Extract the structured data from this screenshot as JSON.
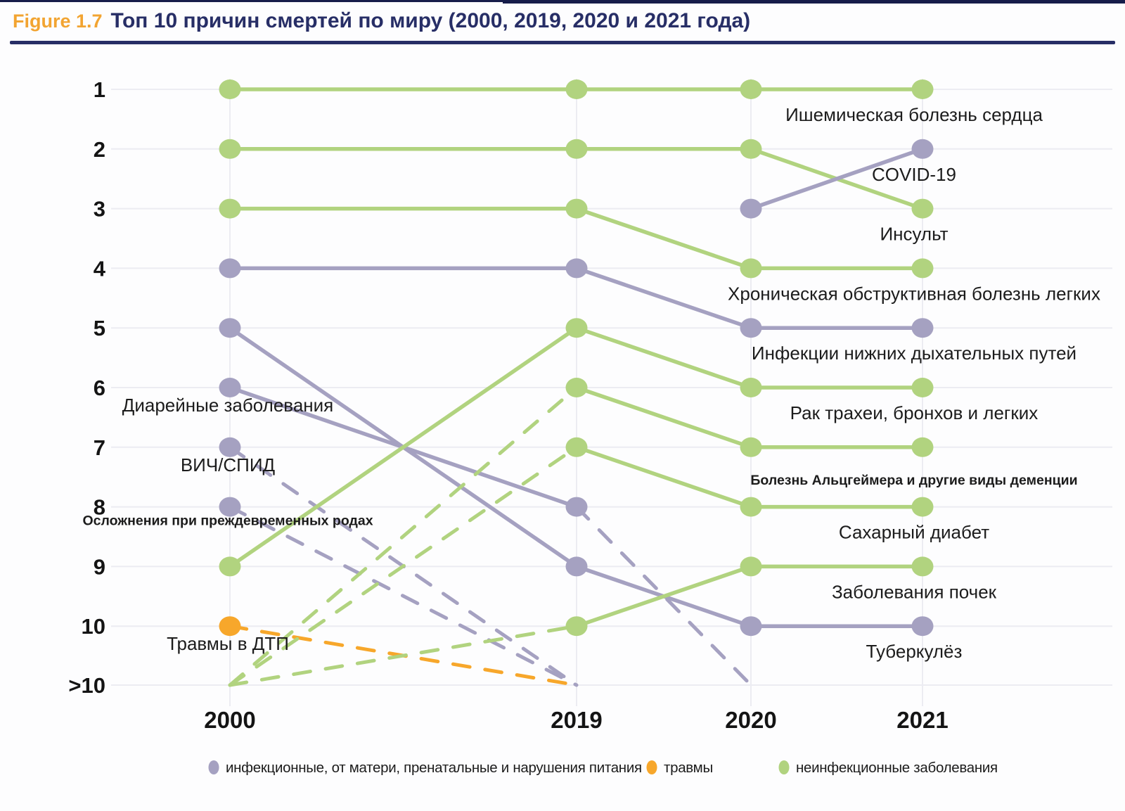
{
  "header": {
    "tag": "Figure 1.7",
    "title": "Топ 10 причин смертей по миру (2000, 2019, 2020 и 2021 года)",
    "tag_color": "#f2a431",
    "title_color": "#272e66",
    "rule_color": "#272e66",
    "top_bar_color": "#161c4a"
  },
  "chart_data": {
    "type": "line",
    "variant": "bump-chart-of-ranks",
    "title": "Топ 10 причин смертей по миру (2000, 2019, 2020 и 2021 года)",
    "x": [
      "2000",
      "2019",
      "2020",
      "2021"
    ],
    "y_ticks": [
      "1",
      "2",
      "3",
      "4",
      "5",
      "6",
      "7",
      "8",
      "9",
      "10",
      ">10"
    ],
    "y_meaning": "rank among causes of death, 1 = leading; >10 = outside top 10",
    "grid": true,
    "legend_position": "bottom",
    "colors": {
      "infectious": "#a5a1c1",
      "injuries": "#f7a72b",
      "noncommunicable": "#b1d37f",
      "grid": "#ececf2",
      "axis_text": "#141414",
      "label_text": "#1c1c1c"
    },
    "series": [
      {
        "id": "lri",
        "name": "Инфекции нижних дыхательных путей",
        "category": "infectious",
        "ranks": [
          4,
          4,
          5,
          5
        ],
        "label": {
          "side": "right",
          "row": 5
        }
      },
      {
        "id": "tb",
        "name": "Туберкулёз",
        "category": "infectious",
        "ranks": [
          5,
          9,
          10,
          10
        ],
        "label": {
          "side": "right",
          "row": 10
        }
      },
      {
        "id": "diarrheal",
        "name": "Диарейные заболевания",
        "category": "infectious",
        "ranks": [
          6,
          8,
          ">10",
          null
        ],
        "label": {
          "side": "left",
          "row": 6
        }
      },
      {
        "id": "hiv",
        "name": "ВИЧ/СПИД",
        "category": "infectious",
        "ranks": [
          7,
          ">10",
          null,
          null
        ],
        "label": {
          "side": "left",
          "row": 7
        }
      },
      {
        "id": "preterm",
        "name": "Осложнения при преждевременных родах",
        "category": "infectious",
        "ranks": [
          8,
          ">10",
          null,
          null
        ],
        "label": {
          "side": "left",
          "row": 8,
          "small": true
        }
      },
      {
        "id": "road-injury",
        "name": "Травмы в ДТП",
        "category": "injuries",
        "ranks": [
          10,
          ">10",
          null,
          null
        ],
        "label": {
          "side": "left",
          "row": 10
        }
      },
      {
        "id": "ihd",
        "name": "Ишемическая болезнь сердца",
        "category": "noncommunicable",
        "ranks": [
          1,
          1,
          1,
          1
        ],
        "label": {
          "side": "right",
          "row": 1
        }
      },
      {
        "id": "stroke",
        "name": "Инсульт",
        "category": "noncommunicable",
        "ranks": [
          2,
          2,
          2,
          3
        ],
        "label": {
          "side": "right",
          "row": 3
        }
      },
      {
        "id": "copd",
        "name": "Хроническая обструктивная болезнь легких",
        "category": "noncommunicable",
        "ranks": [
          3,
          3,
          4,
          4
        ],
        "label": {
          "side": "right",
          "row": 4
        }
      },
      {
        "id": "lung-cancer",
        "name": "Рак трахеи, бронхов и легких",
        "category": "noncommunicable",
        "ranks": [
          9,
          5,
          6,
          6
        ],
        "label": {
          "side": "right",
          "row": 6
        }
      },
      {
        "id": "alzheimer",
        "name": "Болезнь Альцгеймера и другие виды деменции",
        "category": "noncommunicable",
        "ranks": [
          ">10",
          6,
          7,
          7
        ],
        "label": {
          "side": "right",
          "row": 7,
          "small": true
        }
      },
      {
        "id": "diabetes",
        "name": "Сахарный диабет",
        "category": "noncommunicable",
        "ranks": [
          ">10",
          7,
          8,
          8
        ],
        "label": {
          "side": "right",
          "row": 8
        }
      },
      {
        "id": "kidney",
        "name": "Заболевания почек",
        "category": "noncommunicable",
        "ranks": [
          ">10",
          10,
          9,
          9
        ],
        "label": {
          "side": "right",
          "row": 9
        }
      },
      {
        "id": "covid19",
        "name": "COVID-19",
        "category": "infectious",
        "ranks": [
          null,
          null,
          3,
          2
        ],
        "label": {
          "side": "right",
          "row": 2
        }
      }
    ],
    "legend": [
      {
        "key": "infectious",
        "label": "инфекционные, от матери, пренатальные и нарушения питания"
      },
      {
        "key": "injuries",
        "label": "травмы"
      },
      {
        "key": "noncommunicable",
        "label": "неинфекционные заболевания"
      }
    ]
  }
}
